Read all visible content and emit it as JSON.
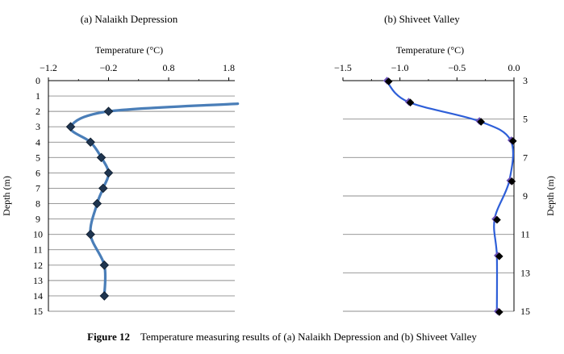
{
  "caption": {
    "number": "Figure 12",
    "text": "Temperature measuring results of (a) Nalaikh Depression and (b) Shiveet Valley"
  },
  "chart_data": [
    {
      "type": "line",
      "title": "(a) Nalaikh Depression",
      "xlabel": "Temperature (°C)",
      "ylabel": "Depth (m)",
      "xlim": [
        -1.2,
        1.9
      ],
      "ylim": [
        0,
        15
      ],
      "x_axis_position": "top",
      "y_axis_position": "left",
      "y_inverted": true,
      "xticks": [
        "−1.2",
        "−0.2",
        "0.8",
        "1.8"
      ],
      "xtick_values": [
        -1.2,
        -0.2,
        0.8,
        1.8
      ],
      "yticks": [
        "0",
        "1",
        "2",
        "3",
        "4",
        "5",
        "6",
        "7",
        "8",
        "9",
        "10",
        "11",
        "12",
        "13",
        "14",
        "15"
      ],
      "ytick_values": [
        0,
        1,
        2,
        3,
        4,
        5,
        6,
        7,
        8,
        9,
        10,
        11,
        12,
        13,
        14,
        15
      ],
      "grid": "horizontal",
      "line_color": "#4a7eb8",
      "marker_color": "#1f3550",
      "series": [
        {
          "x": [
            1.95,
            -0.2,
            -0.83,
            -0.5,
            -0.32,
            -0.2,
            -0.29,
            -0.39,
            -0.5,
            -0.27,
            -0.27
          ],
          "y": [
            1.5,
            2,
            3,
            4,
            5,
            6,
            7,
            8,
            10,
            12,
            14
          ],
          "markers": [
            false,
            true,
            true,
            true,
            true,
            true,
            true,
            true,
            true,
            true,
            true
          ]
        }
      ]
    },
    {
      "type": "line",
      "title": "(b) Shiveet Valley",
      "xlabel": "Temperature (°C)",
      "ylabel": "Depth (m)",
      "xlim": [
        -1.5,
        0.0
      ],
      "ylim": [
        3,
        15
      ],
      "x_axis_position": "top",
      "y_axis_position": "right",
      "y_inverted": true,
      "xticks": [
        "−1.5",
        "−1.0",
        "−0.5",
        "0.0"
      ],
      "xtick_values": [
        -1.5,
        -1.0,
        -0.5,
        0.0
      ],
      "yticks": [
        "3",
        "5",
        "7",
        "9",
        "11",
        "13",
        "15"
      ],
      "ytick_values": [
        3,
        5,
        7,
        9,
        11,
        13,
        15
      ],
      "grid": "horizontal",
      "line_color": "#2e5fd8",
      "marker_color": "#000000",
      "marker_color_secondary": "#6a50b8",
      "series": [
        {
          "x": [
            -1.12,
            -0.93,
            -0.31,
            -0.03,
            -0.04,
            -0.17,
            -0.15,
            -0.15
          ],
          "y": [
            3.0,
            4.1,
            5.1,
            6.1,
            8.2,
            10.2,
            12.1,
            15.0
          ],
          "markers": [
            true,
            true,
            true,
            true,
            true,
            true,
            true,
            true
          ]
        }
      ]
    }
  ]
}
